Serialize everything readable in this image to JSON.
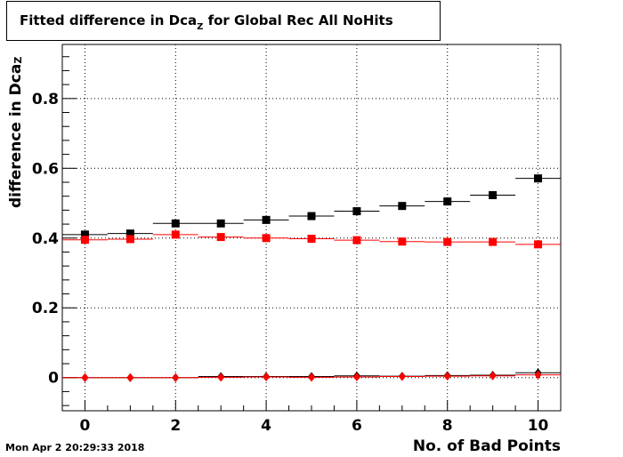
{
  "title": {
    "prefix": "Fitted difference in Dca",
    "subscript": "Z",
    "suffix": " for Global Rec All NoHits"
  },
  "ylabel": {
    "prefix": "difference in Dca",
    "subscript": "Z"
  },
  "xlabel": "No. of Bad Points",
  "timestamp": "Mon Apr  2 20:29:33 2018",
  "colors": {
    "black_series": "#000000",
    "red_series": "#ff0000"
  },
  "chart_data": {
    "type": "scatter",
    "xlim": [
      -0.5,
      10.5
    ],
    "ylim": [
      -0.095,
      0.955
    ],
    "x_ticks": [
      0,
      2,
      4,
      6,
      8,
      10
    ],
    "y_ticks": [
      0,
      0.2,
      0.4,
      0.6,
      0.8
    ],
    "y_tick_labels": [
      "0",
      "0.2",
      "0.4",
      "0.6",
      "0.8"
    ],
    "grid": true,
    "x": [
      0,
      1,
      2,
      3,
      4,
      5,
      6,
      7,
      8,
      9,
      10
    ],
    "series": [
      {
        "marker": "square",
        "color": "#000000",
        "values": [
          0.41,
          0.413,
          0.442,
          0.442,
          0.452,
          0.463,
          0.477,
          0.492,
          0.505,
          0.523,
          0.571
        ]
      },
      {
        "marker": "square",
        "color": "#ff0000",
        "values": [
          0.395,
          0.397,
          0.41,
          0.403,
          0.4,
          0.398,
          0.394,
          0.39,
          0.389,
          0.389,
          0.382
        ]
      },
      {
        "marker": "diamond",
        "color": "#000000",
        "values": [
          0.0,
          0.0,
          0.0,
          0.003,
          0.003,
          0.003,
          0.005,
          0.004,
          0.006,
          0.007,
          0.014
        ]
      },
      {
        "marker": "diamond",
        "color": "#ff0000",
        "values": [
          0.0,
          0.0,
          0.0,
          0.001,
          0.002,
          0.001,
          0.002,
          0.003,
          0.004,
          0.005,
          0.008
        ]
      }
    ]
  }
}
